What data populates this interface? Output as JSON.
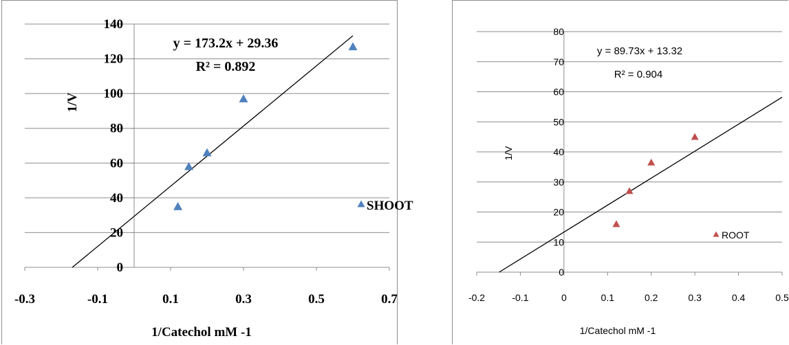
{
  "chart_data": [
    {
      "type": "scatter",
      "title": "",
      "xlabel": "1/Catechol mM -1",
      "ylabel": "1/V",
      "xlim": [
        -0.3,
        0.7
      ],
      "ylim": [
        0,
        140
      ],
      "xticks": [
        -0.3,
        -0.1,
        0.1,
        0.3,
        0.5,
        0.7
      ],
      "xtick_labels": [
        "-0.3",
        "-0.1",
        "0.1",
        "0.3",
        "0.5",
        "0.7"
      ],
      "yticks": [
        0,
        20,
        40,
        60,
        80,
        100,
        120,
        140
      ],
      "ytick_labels": [
        "0",
        "20",
        "40",
        "60",
        "80",
        "100",
        "120",
        "140"
      ],
      "grid": "horizontal",
      "legend": "right",
      "marker_color": "#4f81bd",
      "series": [
        {
          "name": "SHOOT",
          "points": [
            [
              0.12,
              35
            ],
            [
              0.15,
              58
            ],
            [
              0.2,
              66
            ],
            [
              0.3,
              97
            ],
            [
              0.6,
              127
            ]
          ]
        }
      ],
      "trendline": {
        "slope": 173.2,
        "intercept": 29.36,
        "equation": "y = 173.2x + 29.36",
        "r2": "R² = 0.892"
      }
    },
    {
      "type": "scatter",
      "title": "",
      "xlabel": "1/Catechol mM -1",
      "ylabel": "1/V",
      "xlim": [
        -0.2,
        0.5
      ],
      "ylim": [
        0,
        80
      ],
      "xticks": [
        -0.2,
        -0.1,
        0,
        0.1,
        0.2,
        0.3,
        0.4,
        0.5
      ],
      "xtick_labels": [
        "-0.2",
        "-0.1",
        "0",
        "0.1",
        "0.2",
        "0.3",
        "0.4",
        "0.5"
      ],
      "yticks": [
        0,
        10,
        20,
        30,
        40,
        50,
        60,
        70,
        80
      ],
      "ytick_labels": [
        "0",
        "10",
        "20",
        "30",
        "40",
        "50",
        "60",
        "70",
        "80"
      ],
      "grid": "horizontal",
      "legend": "right",
      "marker_color": "#c0504d",
      "series": [
        {
          "name": "ROOT",
          "points": [
            [
              0.12,
              16
            ],
            [
              0.15,
              27
            ],
            [
              0.2,
              36.5
            ],
            [
              0.3,
              45
            ]
          ]
        }
      ],
      "trendline": {
        "slope": 89.73,
        "intercept": 13.32,
        "equation": "y = 89.73x + 13.32",
        "r2": "R² = 0.904"
      }
    }
  ]
}
